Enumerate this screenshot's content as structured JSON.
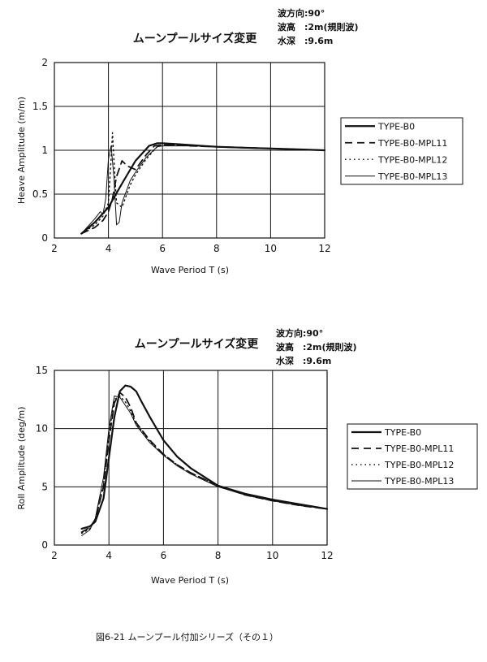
{
  "caption": "図6-21 ムーンプール付加シリーズ（その１）",
  "chart_data": [
    {
      "type": "line",
      "title": "ムーンプールサイズ変更",
      "conditions": [
        "波方向:90°",
        "波高　:2m(規則波)",
        "水深　:9.6m"
      ],
      "xlabel": "Wave Period  T (s)",
      "ylabel": "Heave Amplitude (m/m)",
      "xlim": [
        2,
        12
      ],
      "ylim": [
        0,
        2
      ],
      "xticks": [
        "2",
        "4",
        "6",
        "8",
        "10",
        "12"
      ],
      "yticks": [
        "0",
        "0.5",
        "1",
        "1.5",
        "2"
      ],
      "grid": true,
      "legend_position": "right",
      "series": [
        {
          "name": "TYPE-B0",
          "style": "solid-thick",
          "x": [
            3.0,
            3.5,
            4.0,
            4.5,
            5.0,
            5.5,
            5.8,
            6.0,
            6.5,
            7,
            8,
            9,
            10,
            11,
            12
          ],
          "y": [
            0.05,
            0.18,
            0.35,
            0.62,
            0.88,
            1.05,
            1.08,
            1.08,
            1.07,
            1.06,
            1.04,
            1.03,
            1.02,
            1.01,
            1.0
          ]
        },
        {
          "name": "TYPE-B0-MPL11",
          "style": "dashed",
          "x": [
            3.0,
            3.5,
            3.8,
            4.0,
            4.15,
            4.3,
            4.5,
            4.7,
            5.0,
            5.4,
            5.7,
            6.0,
            6.5,
            7,
            8,
            9,
            10,
            11,
            12
          ],
          "y": [
            0.05,
            0.12,
            0.2,
            0.3,
            0.45,
            0.7,
            0.88,
            0.82,
            0.78,
            0.95,
            1.05,
            1.06,
            1.06,
            1.05,
            1.04,
            1.03,
            1.02,
            1.01,
            1.0
          ]
        },
        {
          "name": "TYPE-B0-MPL12",
          "style": "dotted",
          "x": [
            3.0,
            3.5,
            3.8,
            4.0,
            4.1,
            4.15,
            4.2,
            4.3,
            4.5,
            4.8,
            5.0,
            5.4,
            5.8,
            6.0,
            6.5,
            7,
            8,
            9,
            10,
            11,
            12
          ],
          "y": [
            0.05,
            0.15,
            0.25,
            0.4,
            0.9,
            1.2,
            0.9,
            0.4,
            0.35,
            0.6,
            0.72,
            0.9,
            1.04,
            1.06,
            1.06,
            1.05,
            1.04,
            1.03,
            1.02,
            1.01,
            1.0
          ]
        },
        {
          "name": "TYPE-B0-MPL13",
          "style": "solid-thin",
          "x": [
            3.0,
            3.5,
            3.7,
            3.8,
            3.9,
            4.0,
            4.1,
            4.2,
            4.3,
            4.4,
            4.5,
            4.8,
            5.0,
            5.4,
            5.8,
            6.0,
            6.5,
            7,
            8,
            9,
            10,
            11,
            12
          ],
          "y": [
            0.05,
            0.22,
            0.3,
            0.27,
            0.45,
            0.9,
            1.05,
            0.7,
            0.15,
            0.18,
            0.4,
            0.65,
            0.75,
            0.92,
            1.04,
            1.05,
            1.05,
            1.05,
            1.04,
            1.03,
            1.02,
            1.01,
            1.0
          ]
        }
      ]
    },
    {
      "type": "line",
      "title": "ムーンプールサイズ変更",
      "conditions": [
        "波方向:90°",
        "波高　:2m(規則波)",
        "水深　:9.6m"
      ],
      "xlabel": "Wave Period  T (s)",
      "ylabel": "Roll Amplitude (deg/m)",
      "xlim": [
        2,
        12
      ],
      "ylim": [
        0,
        15
      ],
      "xticks": [
        "2",
        "4",
        "6",
        "8",
        "10",
        "12"
      ],
      "yticks": [
        "0",
        "5",
        "10",
        "15"
      ],
      "grid": true,
      "legend_position": "right",
      "series": [
        {
          "name": "TYPE-B0",
          "style": "solid-thick",
          "x": [
            3.0,
            3.3,
            3.5,
            3.8,
            4.0,
            4.2,
            4.4,
            4.6,
            4.8,
            5.0,
            5.2,
            5.5,
            6.0,
            6.5,
            7.0,
            8,
            9,
            10,
            11,
            12
          ],
          "y": [
            1.4,
            1.6,
            2.0,
            4.0,
            7.5,
            11.0,
            13.2,
            13.7,
            13.6,
            13.2,
            12.3,
            11.0,
            9.0,
            7.6,
            6.6,
            5.1,
            4.4,
            3.9,
            3.5,
            3.1
          ]
        },
        {
          "name": "TYPE-B0-MPL11",
          "style": "dashed",
          "x": [
            3.0,
            3.3,
            3.5,
            3.8,
            4.0,
            4.2,
            4.4,
            4.6,
            4.8,
            5.0,
            5.5,
            6.0,
            6.5,
            7,
            8,
            9,
            10,
            11,
            12
          ],
          "y": [
            1.1,
            1.5,
            2.2,
            5.0,
            9.0,
            12.2,
            13.1,
            12.7,
            11.8,
            10.5,
            9.0,
            7.8,
            6.9,
            6.2,
            5.1,
            4.3,
            3.8,
            3.4,
            3.1
          ]
        },
        {
          "name": "TYPE-B0-MPL12",
          "style": "dotted",
          "x": [
            3.0,
            3.3,
            3.5,
            3.8,
            4.0,
            4.2,
            4.4,
            4.6,
            4.8,
            5.0,
            5.5,
            6.0,
            6.5,
            7,
            8,
            9,
            10,
            11,
            12
          ],
          "y": [
            1.0,
            1.4,
            2.2,
            5.2,
            9.5,
            12.5,
            12.8,
            12.3,
            11.5,
            10.4,
            8.9,
            7.8,
            6.9,
            6.2,
            5.1,
            4.3,
            3.8,
            3.4,
            3.1
          ]
        },
        {
          "name": "TYPE-B0-MPL13",
          "style": "solid-thin",
          "x": [
            3.0,
            3.3,
            3.5,
            3.8,
            4.0,
            4.2,
            4.4,
            4.6,
            4.8,
            5.0,
            5.5,
            6.0,
            6.5,
            7,
            8,
            9,
            10,
            11,
            12
          ],
          "y": [
            0.8,
            1.3,
            2.3,
            5.8,
            10.0,
            12.8,
            12.7,
            12.0,
            11.3,
            10.3,
            8.8,
            7.7,
            6.8,
            6.1,
            5.0,
            4.3,
            3.8,
            3.4,
            3.1
          ]
        }
      ]
    }
  ]
}
